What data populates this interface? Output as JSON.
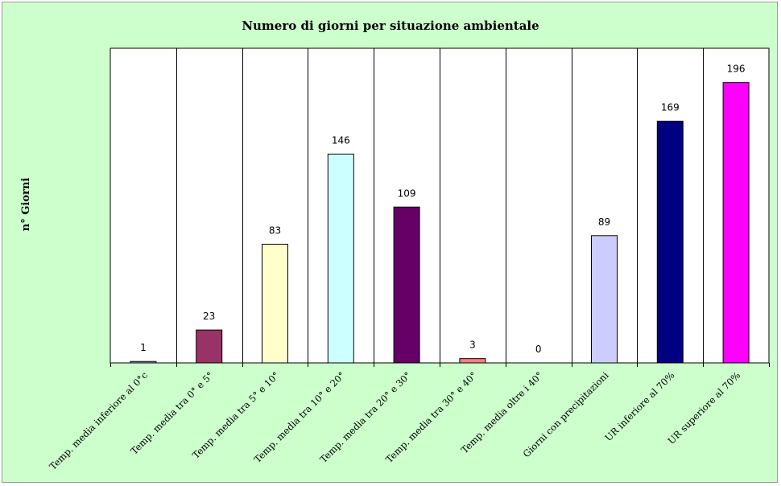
{
  "chart_data": {
    "type": "bar",
    "title": "Numero di giorni per situazione ambientale",
    "ylabel": "n° Giorni",
    "xlabel": "",
    "ylim": [
      0,
      220
    ],
    "grid": "vertical category separators",
    "legend": "none",
    "categories": [
      "Temp. media inferiore al 0°c",
      "Temp. media tra 0° e 5°",
      "Temp. media tra 5° e 10°",
      "Temp. media tra 10° e 20°",
      "Temp. media tra 20° e 30°",
      "Temp. media tra 30° e 40°",
      "Temp. media oltre i 40°",
      "Giorni con precipitazioni",
      "UR inferiore al 70%",
      "UR superiore al 70%"
    ],
    "values": [
      1,
      23,
      83,
      146,
      109,
      3,
      0,
      89,
      169,
      196
    ],
    "colors": [
      "#9999ff",
      "#993366",
      "#ffffcc",
      "#ccffff",
      "#660066",
      "#ff8080",
      "#0066cc",
      "#ccccff",
      "#000080",
      "#ff00ff"
    ],
    "background": "#ccffcc",
    "plot_background": "#ffffff"
  }
}
